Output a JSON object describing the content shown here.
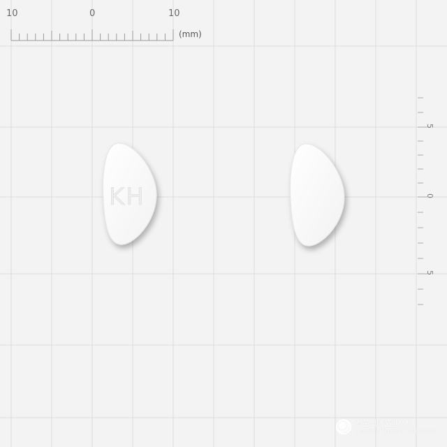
{
  "scale": {
    "top_labels": [
      "10",
      "0",
      "10"
    ],
    "unit": "(mm)",
    "side_labels": [
      "5",
      "0",
      "5"
    ]
  },
  "pills": [
    {
      "name": "pill-front",
      "imprint": "KH"
    },
    {
      "name": "pill-back",
      "imprint": ""
    }
  ],
  "watermark": {
    "korean": "식품의약품안전처",
    "english": "Ministry of Food and Drug Safety"
  },
  "colors": {
    "background": "#f3f3f3",
    "grid": "#dcdcdc",
    "pill": "#ffffff"
  }
}
